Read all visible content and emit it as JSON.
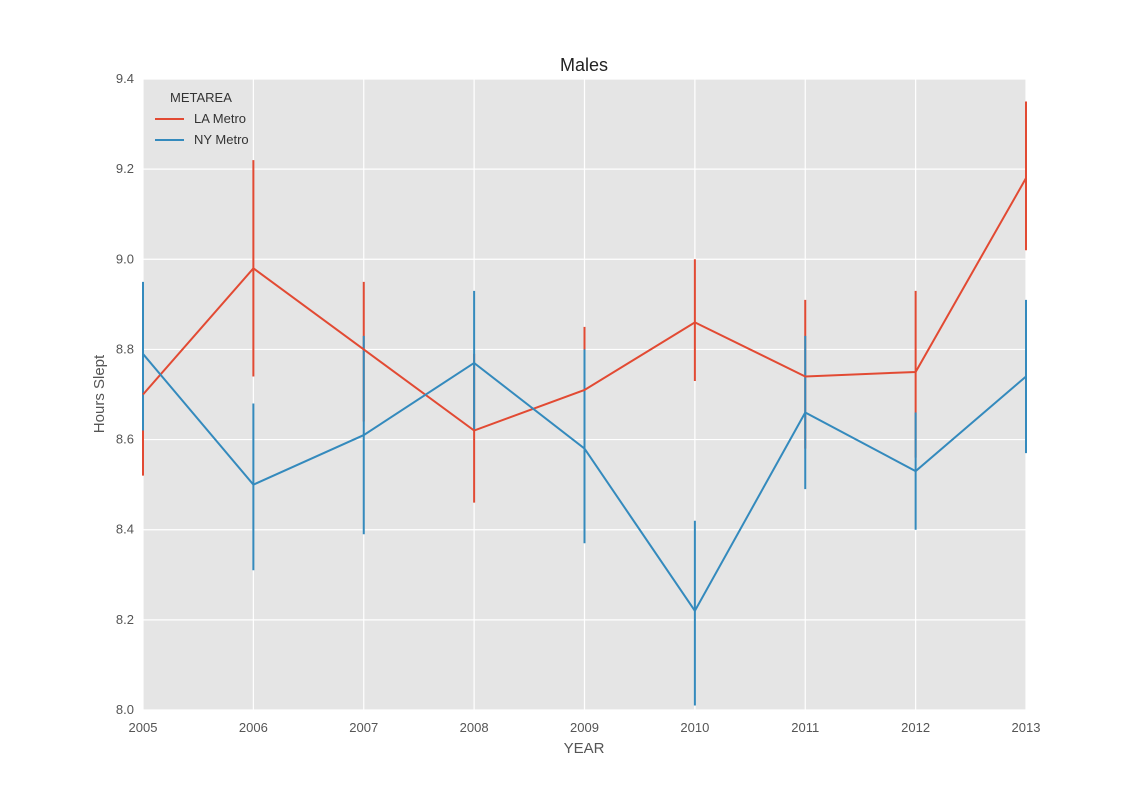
{
  "chart_data": {
    "type": "line",
    "title": "Males",
    "xlabel": "YEAR",
    "ylabel": "Hours Slept",
    "x": [
      2005,
      2006,
      2007,
      2008,
      2009,
      2010,
      2011,
      2012,
      2013
    ],
    "xlim": [
      2005,
      2013
    ],
    "ylim": [
      8.0,
      9.4
    ],
    "x_ticks": [
      "2005",
      "2006",
      "2007",
      "2008",
      "2009",
      "2010",
      "2011",
      "2012",
      "2013"
    ],
    "y_ticks": [
      "8.0",
      "8.2",
      "8.4",
      "8.6",
      "8.8",
      "9.0",
      "9.2",
      "9.4"
    ],
    "grid": true,
    "legend": {
      "title": "METAREA",
      "placement": "top-left"
    },
    "series": [
      {
        "name": "LA Metro",
        "color": "#e24a33",
        "values": [
          8.7,
          8.98,
          8.8,
          8.62,
          8.71,
          8.86,
          8.74,
          8.75,
          9.18
        ],
        "err_low": [
          8.52,
          8.74,
          8.64,
          8.46,
          8.57,
          8.73,
          8.58,
          8.56,
          9.02
        ],
        "err_high": [
          8.88,
          9.22,
          8.95,
          8.79,
          8.85,
          9.0,
          8.91,
          8.93,
          9.35
        ]
      },
      {
        "name": "NY Metro",
        "color": "#348abd",
        "values": [
          8.79,
          8.5,
          8.61,
          8.77,
          8.58,
          8.22,
          8.66,
          8.53,
          8.74
        ],
        "err_low": [
          8.62,
          8.31,
          8.39,
          8.62,
          8.37,
          8.01,
          8.49,
          8.4,
          8.57
        ],
        "err_high": [
          8.95,
          8.68,
          8.83,
          8.93,
          8.8,
          8.42,
          8.83,
          8.66,
          8.91
        ]
      }
    ]
  }
}
